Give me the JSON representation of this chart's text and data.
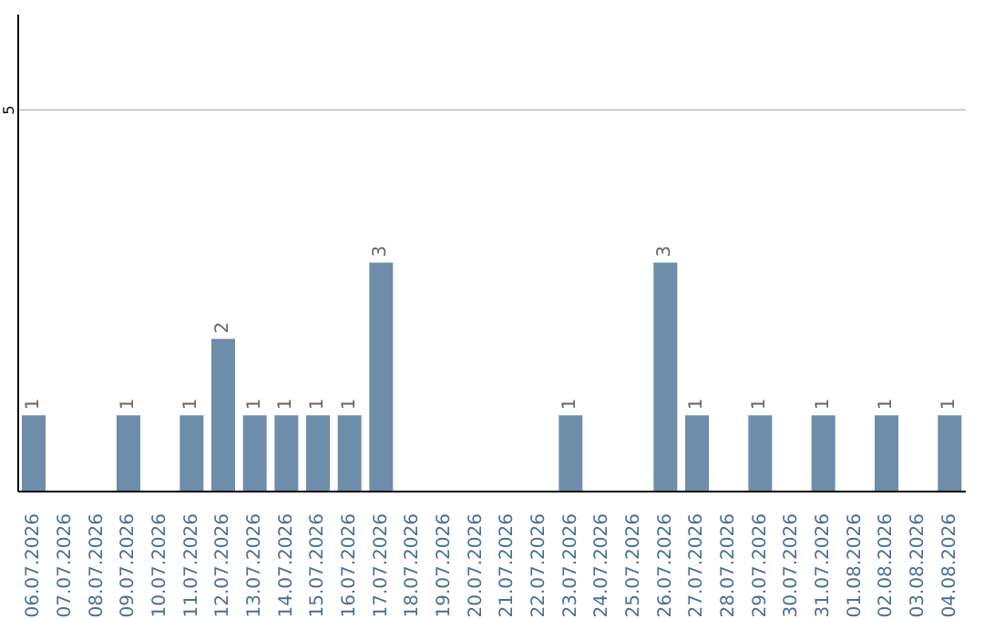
{
  "chart_data": {
    "type": "bar",
    "categories": [
      "06.07.2026",
      "07.07.2026",
      "08.07.2026",
      "09.07.2026",
      "10.07.2026",
      "11.07.2026",
      "12.07.2026",
      "13.07.2026",
      "14.07.2026",
      "15.07.2026",
      "16.07.2026",
      "17.07.2026",
      "18.07.2026",
      "19.07.2026",
      "20.07.2026",
      "21.07.2026",
      "22.07.2026",
      "23.07.2026",
      "24.07.2026",
      "25.07.2026",
      "26.07.2026",
      "27.07.2026",
      "28.07.2026",
      "29.07.2026",
      "30.07.2026",
      "31.07.2026",
      "01.08.2026",
      "02.08.2026",
      "03.08.2026",
      "04.08.2026"
    ],
    "values": [
      1,
      0,
      0,
      1,
      0,
      1,
      2,
      1,
      1,
      1,
      1,
      3,
      0,
      0,
      0,
      0,
      0,
      1,
      0,
      0,
      3,
      1,
      0,
      1,
      0,
      1,
      0,
      1,
      0,
      1
    ],
    "value_labels": [
      "1",
      null,
      null,
      "1",
      null,
      "1",
      "2",
      "1",
      "1",
      "1",
      "1",
      "3",
      null,
      null,
      null,
      null,
      null,
      "1",
      null,
      null,
      "3",
      "1",
      null,
      "1",
      null,
      "1",
      null,
      "1",
      null,
      "1"
    ],
    "color": "#6d8dab",
    "ylim": [
      0,
      6.25
    ],
    "yticks": [
      5
    ],
    "grid": "y"
  }
}
